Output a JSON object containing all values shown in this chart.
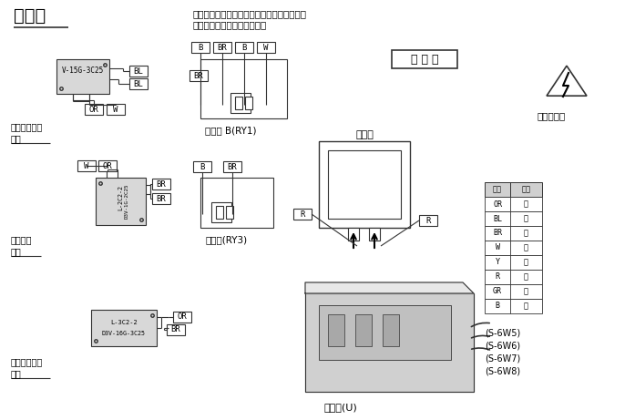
{
  "title": "接线图",
  "note_line1": "注：置換元件時，請按圖所示檢查導線顏色。",
  "note_line2": "括號內所指為接插件的顏色。",
  "brand_box": "新 高 坂",
  "warning_text": "注意：高压",
  "color_table_headers": [
    "行号",
    "颜色"
  ],
  "color_table_rows": [
    [
      "OR",
      "橙"
    ],
    [
      "BL",
      "藍"
    ],
    [
      "BR",
      "棕"
    ],
    [
      "W",
      "白"
    ],
    [
      "Y",
      "黄"
    ],
    [
      "R",
      "紅"
    ],
    [
      "GR",
      "绿"
    ],
    [
      "B",
      "紫"
    ]
  ],
  "bottom_notes": [
    "(S-6W5)",
    "(S-6W6)",
    "(S-6W7)",
    "(S-6W8)"
  ],
  "switch1_label1": "初级磁锁开关",
  "switch1_label2": "顶部",
  "switch1_box": "V-15G-3C25",
  "switch2_label1": "短路开关",
  "switch2_label2": "中部",
  "switch2_box1": "L-2C2-2",
  "switch2_box2": "D3V-1G-2C25",
  "switch3_label1": "次级磁锁开关",
  "switch3_label2": "底部",
  "switch3_box1": "L-3C2-2",
  "switch3_box2": "D3V-16G-3C25",
  "relay1_label": "继电器 B(RY1)",
  "relay2_label": "继电器(RY3)",
  "magnetron_label": "磁控管",
  "inverter_label": "变频器(U)",
  "bg_color": "#ffffff",
  "line_color": "#333333",
  "box_fill": "#d8d8d8",
  "tag_fill": "#ffffff"
}
